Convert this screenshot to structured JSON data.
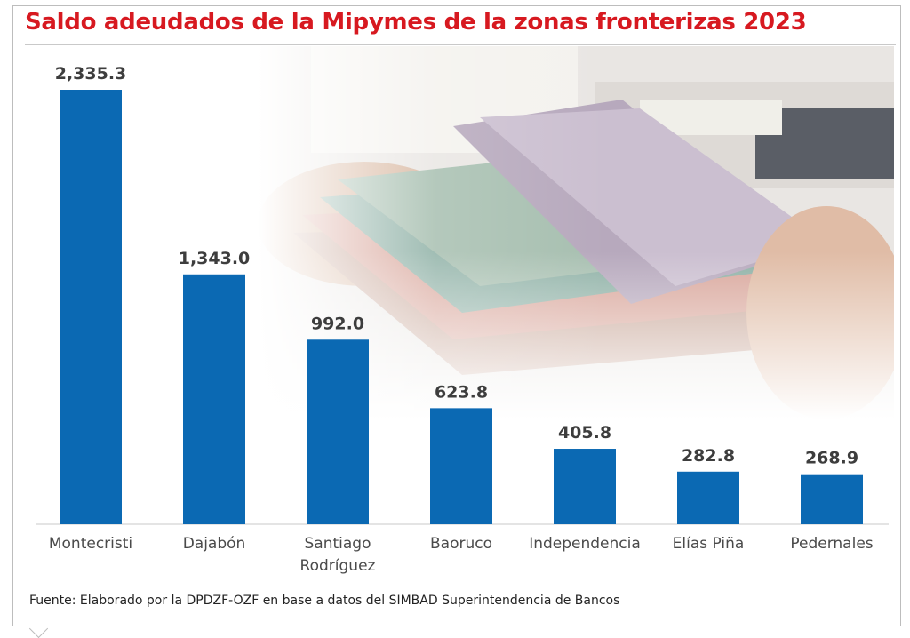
{
  "title": "Saldo adeudados de la Mipymes de la zonas fronterizas 2023",
  "source": "Fuente: Elaborado por la DPDZF-OZF en base a datos del SIMBAD Superintendencia de Bancos",
  "colors": {
    "title": "#d71920",
    "bar": "#0b69b3"
  },
  "chart_data": {
    "type": "bar",
    "categories": [
      "Montecristi",
      "Dajabón",
      "Santiago Rodríguez",
      "Baoruco",
      "Independencia",
      "Elías Piña",
      "Pedernales"
    ],
    "category_lines": [
      [
        "Montecristi"
      ],
      [
        "Dajabón"
      ],
      [
        "Santiago",
        "Rodríguez"
      ],
      [
        "Baoruco"
      ],
      [
        "Independencia"
      ],
      [
        "Elías Piña"
      ],
      [
        "Pedernales"
      ]
    ],
    "values": [
      2335.3,
      1343.0,
      992.0,
      623.8,
      405.8,
      282.8,
      268.9
    ],
    "value_labels": [
      "2,335.3",
      "1,343.0",
      "992.0",
      "623.8",
      "405.8",
      "282.8",
      "268.9"
    ],
    "ylim": [
      0,
      2335.3
    ],
    "grid": false,
    "legend": "none"
  }
}
